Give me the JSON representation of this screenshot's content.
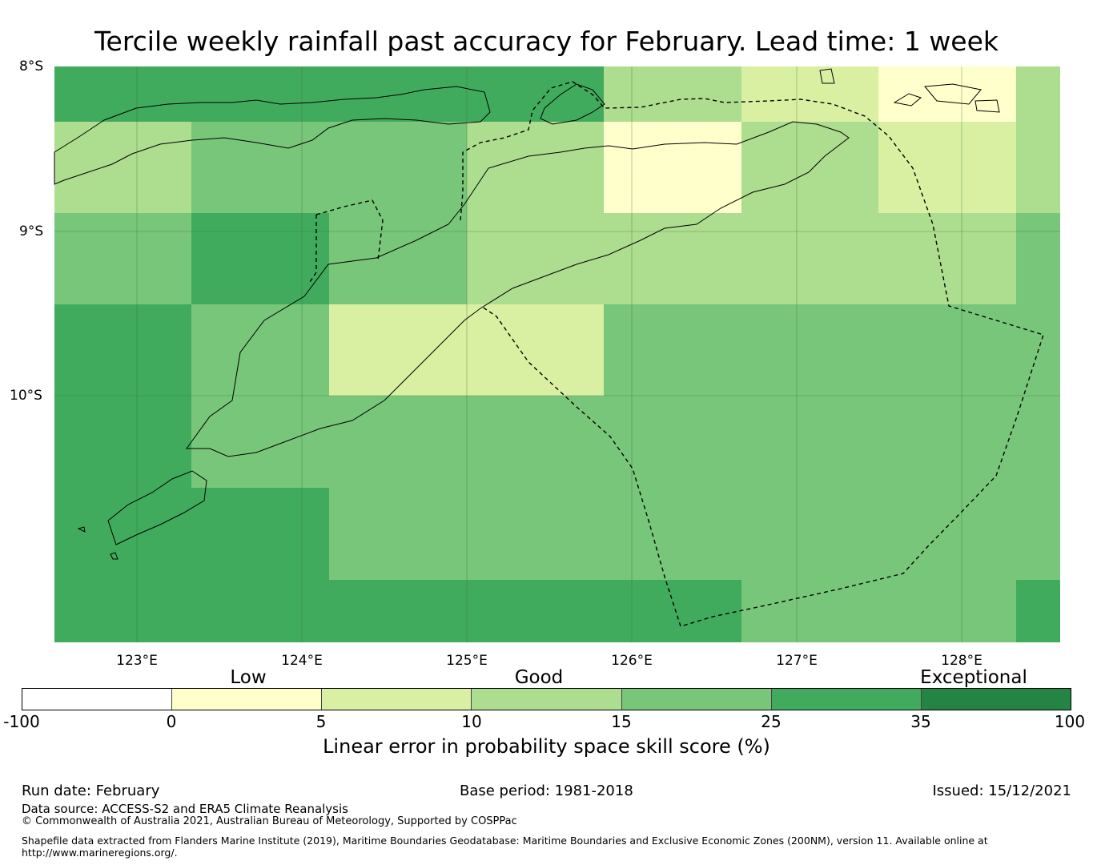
{
  "title": "Tercile weekly rainfall past accuracy for February. Lead time: 1 week",
  "map": {
    "lat_labels": [
      "8°S",
      "9°S",
      "10°S"
    ],
    "lon_labels": [
      "123°E",
      "124°E",
      "125°E",
      "126°E",
      "127°E",
      "128°E"
    ],
    "category_labels": [
      "Low",
      "Good",
      "Exceptional"
    ],
    "grid_values": [
      [
        25,
        25,
        25,
        25,
        10,
        5,
        0,
        10
      ],
      [
        10,
        15,
        15,
        10,
        0,
        10,
        5,
        10
      ],
      [
        15,
        25,
        15,
        10,
        10,
        10,
        10,
        15
      ],
      [
        25,
        15,
        5,
        5,
        15,
        15,
        15,
        15
      ],
      [
        25,
        15,
        15,
        15,
        15,
        15,
        15,
        15
      ],
      [
        25,
        25,
        15,
        15,
        15,
        15,
        15,
        15
      ],
      [
        25,
        25,
        25,
        25,
        25,
        15,
        15,
        25
      ]
    ]
  },
  "colorbar": {
    "ticks": [
      "-100",
      "0",
      "5",
      "10",
      "15",
      "25",
      "35",
      "100"
    ],
    "colors": [
      "#ffffff",
      "#ffffcc",
      "#d9f0a3",
      "#addd8e",
      "#78c679",
      "#41ab5d",
      "#238443"
    ],
    "label": "Linear error in probability space skill score (%)"
  },
  "footer": {
    "run_date": "Run date: February",
    "base_period": "Base period: 1981-2018",
    "issued": "Issued: 15/12/2021",
    "data_source": "Data source: ACCESS-S2 and ERA5 Climate Reanalysis",
    "copyright": "© Commonwealth of Australia 2021, Australian Bureau of Meteorology, Supported by COSPPac",
    "shapefile_line1": "Shapefile data extracted from Flanders Marine Institute (2019), Maritime Boundaries Geodatabase: Maritime Boundaries and Exclusive Economic Zones (200NM), version 11. Available online at",
    "shapefile_line2": "http://www.marineregions.org/."
  }
}
